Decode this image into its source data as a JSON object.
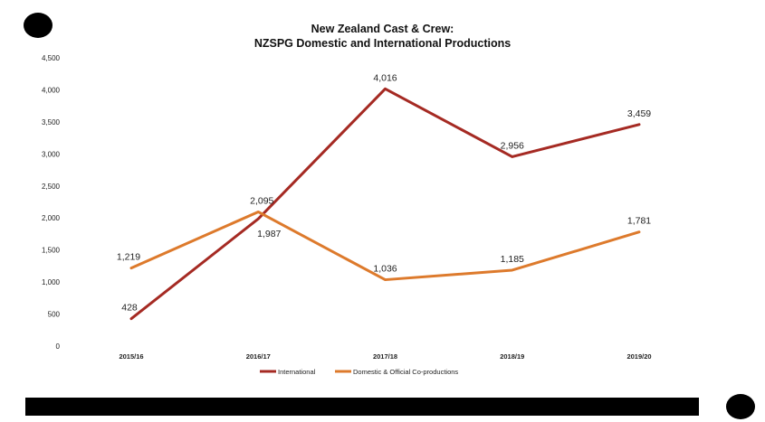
{
  "chart_data": {
    "type": "line",
    "title": "New Zealand Cast & Crew:",
    "subtitle": "NZSPG Domestic and International Productions",
    "categories": [
      "2015/16",
      "2016/17",
      "2017/18",
      "2018/19",
      "2019/20"
    ],
    "ylim": [
      0,
      4500
    ],
    "yticks": [
      "0",
      "500",
      "1,000",
      "1,500",
      "2,000",
      "2,500",
      "3,000",
      "3,500",
      "4,000",
      "4,500"
    ],
    "series": [
      {
        "name": "International",
        "values": [
          428,
          1987,
          4016,
          2956,
          3459
        ],
        "labels": [
          "428",
          "1,987",
          "4,016",
          "2,956",
          "3,459"
        ],
        "color": "#a52a23"
      },
      {
        "name": "Domestic & Official Co-productions",
        "values": [
          1219,
          2095,
          1036,
          1185,
          1781
        ],
        "labels": [
          "1,219",
          "2,095",
          "1,036",
          "1,185",
          "1,781"
        ],
        "color": "#dd7a2c"
      }
    ],
    "grid": false,
    "legend": "bottom"
  }
}
